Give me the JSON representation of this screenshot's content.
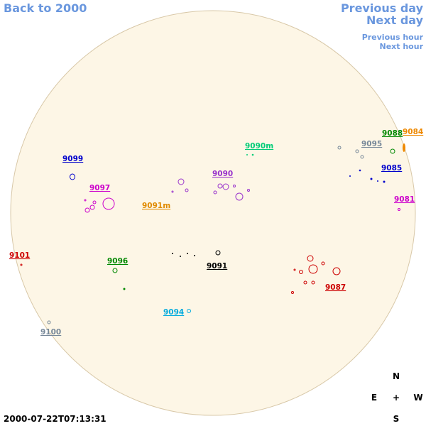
{
  "navigation": {
    "back": "Back to 2000",
    "previous_day": "Previous day",
    "next_day": "Next day",
    "previous_hour": "Previous hour",
    "next_hour": "Next hour"
  },
  "regions": [
    "9099",
    "9097",
    "9091m",
    "9090",
    "9090m",
    "9095",
    "9088",
    "9084",
    "9085",
    "9081",
    "9101",
    "9096",
    "9091",
    "9087",
    "9094",
    "9100"
  ],
  "timestamp": "2000-07-22T07:13:31",
  "compass": {
    "north": "N",
    "east": "E",
    "center": "+",
    "west": "W",
    "south": "S"
  }
}
